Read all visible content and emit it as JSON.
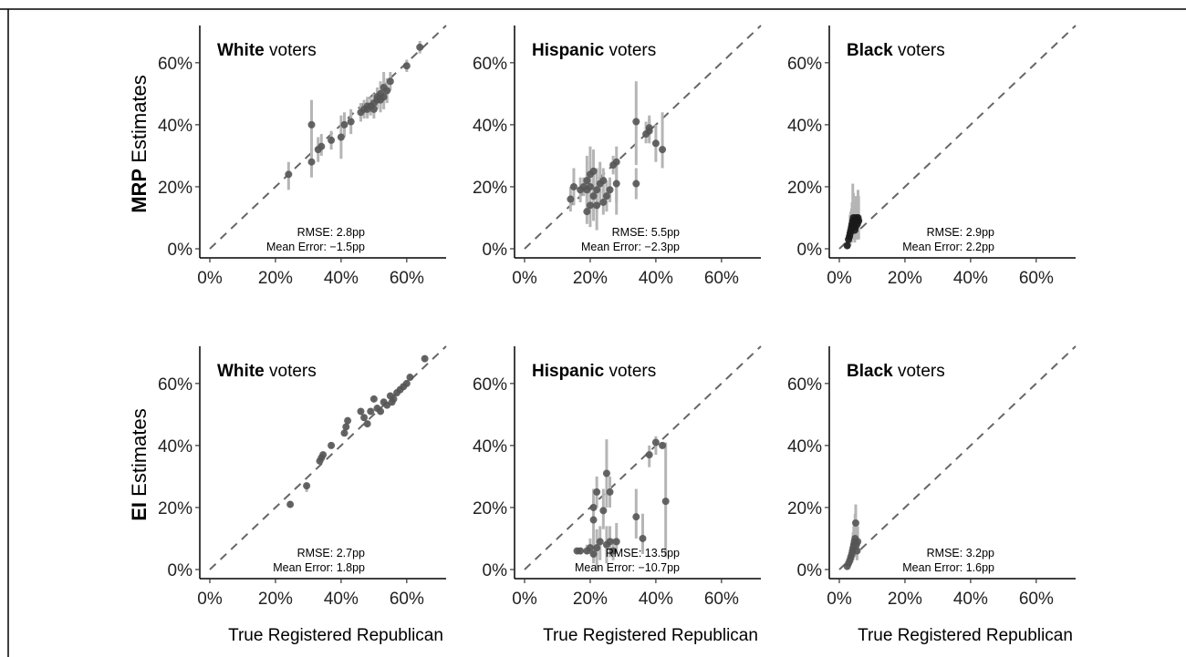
{
  "figure": {
    "row_titles": [
      {
        "bold": "MRP",
        "rest": " Estimates"
      },
      {
        "bold": "EI",
        "rest": " Estimates"
      }
    ],
    "x_title": "True Registered Republican",
    "stat_labels": {
      "rmse": "RMSE: ",
      "mean_error": "Mean Error: "
    }
  },
  "chart_data": [
    {
      "type": "scatter",
      "row": 0,
      "col": 0,
      "method": "MRP",
      "group_bold": "White",
      "group_rest": " voters",
      "xlim": [
        0,
        0.72
      ],
      "ylim": [
        0,
        0.72
      ],
      "xticks": [
        0,
        0.2,
        0.4,
        0.6
      ],
      "yticks": [
        0,
        0.2,
        0.4,
        0.6
      ],
      "tick_labels": [
        "0%",
        "20%",
        "40%",
        "60%"
      ],
      "rmse": "2.8pp",
      "mean_error": "−1.5pp",
      "points": [
        [
          0.24,
          0.24,
          0.19,
          0.28
        ],
        [
          0.31,
          0.4,
          0.33,
          0.48
        ],
        [
          0.31,
          0.28,
          0.23,
          0.33
        ],
        [
          0.33,
          0.32,
          0.28,
          0.36
        ],
        [
          0.34,
          0.33,
          0.3,
          0.37
        ],
        [
          0.37,
          0.35,
          0.32,
          0.38
        ],
        [
          0.4,
          0.36,
          0.29,
          0.43
        ],
        [
          0.41,
          0.4,
          0.36,
          0.44
        ],
        [
          0.43,
          0.41,
          0.37,
          0.45
        ],
        [
          0.46,
          0.44,
          0.41,
          0.47
        ],
        [
          0.47,
          0.45,
          0.42,
          0.48
        ],
        [
          0.48,
          0.46,
          0.43,
          0.49
        ],
        [
          0.48,
          0.45,
          0.42,
          0.48
        ],
        [
          0.49,
          0.46,
          0.43,
          0.49
        ],
        [
          0.5,
          0.45,
          0.42,
          0.48
        ],
        [
          0.5,
          0.47,
          0.44,
          0.5
        ],
        [
          0.51,
          0.48,
          0.45,
          0.51
        ],
        [
          0.51,
          0.49,
          0.46,
          0.52
        ],
        [
          0.52,
          0.48,
          0.44,
          0.52
        ],
        [
          0.52,
          0.5,
          0.46,
          0.54
        ],
        [
          0.53,
          0.52,
          0.47,
          0.57
        ],
        [
          0.53,
          0.49,
          0.45,
          0.53
        ],
        [
          0.54,
          0.51,
          0.47,
          0.55
        ],
        [
          0.55,
          0.54,
          0.51,
          0.57
        ],
        [
          0.6,
          0.59,
          0.57,
          0.61
        ],
        [
          0.64,
          0.65,
          0.63,
          0.67
        ]
      ]
    },
    {
      "type": "scatter",
      "row": 0,
      "col": 1,
      "method": "MRP",
      "group_bold": "Hispanic",
      "group_rest": " voters",
      "xlim": [
        0,
        0.72
      ],
      "ylim": [
        0,
        0.72
      ],
      "xticks": [
        0,
        0.2,
        0.4,
        0.6
      ],
      "yticks": [
        0,
        0.2,
        0.4,
        0.6
      ],
      "tick_labels": [
        "0%",
        "20%",
        "40%",
        "60%"
      ],
      "rmse": "5.5pp",
      "mean_error": "−2.3pp",
      "points": [
        [
          0.14,
          0.16,
          0.12,
          0.2
        ],
        [
          0.15,
          0.2,
          0.14,
          0.26
        ],
        [
          0.17,
          0.19,
          0.15,
          0.23
        ],
        [
          0.18,
          0.2,
          0.17,
          0.23
        ],
        [
          0.19,
          0.12,
          0.08,
          0.16
        ],
        [
          0.19,
          0.19,
          0.14,
          0.24
        ],
        [
          0.19,
          0.22,
          0.14,
          0.3
        ],
        [
          0.2,
          0.24,
          0.17,
          0.33
        ],
        [
          0.2,
          0.14,
          0.07,
          0.2
        ],
        [
          0.2,
          0.2,
          0.12,
          0.28
        ],
        [
          0.21,
          0.25,
          0.18,
          0.32
        ],
        [
          0.21,
          0.17,
          0.09,
          0.25
        ],
        [
          0.22,
          0.14,
          0.06,
          0.22
        ],
        [
          0.22,
          0.19,
          0.12,
          0.26
        ],
        [
          0.23,
          0.21,
          0.14,
          0.28
        ],
        [
          0.24,
          0.15,
          0.11,
          0.19
        ],
        [
          0.24,
          0.22,
          0.18,
          0.26
        ],
        [
          0.25,
          0.17,
          0.12,
          0.22
        ],
        [
          0.26,
          0.19,
          0.15,
          0.23
        ],
        [
          0.27,
          0.27,
          0.24,
          0.3
        ],
        [
          0.28,
          0.21,
          0.15,
          0.27
        ],
        [
          0.28,
          0.28,
          0.11,
          0.33
        ],
        [
          0.34,
          0.21,
          0.16,
          0.26
        ],
        [
          0.34,
          0.41,
          0.27,
          0.54
        ],
        [
          0.37,
          0.37,
          0.34,
          0.41
        ],
        [
          0.38,
          0.39,
          0.35,
          0.43
        ],
        [
          0.38,
          0.38,
          0.34,
          0.42
        ],
        [
          0.4,
          0.34,
          0.28,
          0.4
        ],
        [
          0.42,
          0.32,
          0.26,
          0.44
        ]
      ]
    },
    {
      "type": "scatter",
      "row": 0,
      "col": 2,
      "method": "MRP",
      "group_bold": "Black",
      "group_rest": " voters",
      "xlim": [
        0,
        0.72
      ],
      "ylim": [
        0,
        0.72
      ],
      "xticks": [
        0,
        0.2,
        0.4,
        0.6
      ],
      "yticks": [
        0,
        0.2,
        0.4,
        0.6
      ],
      "tick_labels": [
        "0%",
        "20%",
        "40%",
        "60%"
      ],
      "rmse": "2.9pp",
      "mean_error": "2.2pp",
      "points": [
        [
          0.024,
          0.01,
          0.0,
          0.04
        ],
        [
          0.028,
          0.03,
          0.0,
          0.06
        ],
        [
          0.031,
          0.04,
          0.01,
          0.08
        ],
        [
          0.033,
          0.05,
          0.01,
          0.11
        ],
        [
          0.035,
          0.06,
          0.02,
          0.12
        ],
        [
          0.037,
          0.07,
          0.02,
          0.13
        ],
        [
          0.039,
          0.08,
          0.03,
          0.15
        ],
        [
          0.041,
          0.09,
          0.03,
          0.21
        ],
        [
          0.043,
          0.1,
          0.03,
          0.18
        ],
        [
          0.045,
          0.08,
          0.03,
          0.14
        ],
        [
          0.047,
          0.06,
          0.02,
          0.12
        ],
        [
          0.049,
          0.07,
          0.03,
          0.13
        ],
        [
          0.051,
          0.1,
          0.04,
          0.17
        ],
        [
          0.053,
          0.09,
          0.03,
          0.16
        ],
        [
          0.055,
          0.08,
          0.03,
          0.14
        ],
        [
          0.057,
          0.1,
          0.04,
          0.19
        ],
        [
          0.059,
          0.09,
          0.03,
          0.17
        ]
      ]
    },
    {
      "type": "scatter",
      "row": 1,
      "col": 0,
      "method": "EI",
      "group_bold": "White",
      "group_rest": " voters",
      "xlim": [
        0,
        0.72
      ],
      "ylim": [
        0,
        0.72
      ],
      "xticks": [
        0,
        0.2,
        0.4,
        0.6
      ],
      "yticks": [
        0,
        0.2,
        0.4,
        0.6
      ],
      "tick_labels": [
        "0%",
        "20%",
        "40%",
        "60%"
      ],
      "rmse": "2.7pp",
      "mean_error": "1.8pp",
      "points": [
        [
          0.245,
          0.21,
          0.2,
          0.22
        ],
        [
          0.295,
          0.27,
          0.25,
          0.28
        ],
        [
          0.335,
          0.35,
          0.34,
          0.36
        ],
        [
          0.34,
          0.36,
          0.35,
          0.37
        ],
        [
          0.345,
          0.37,
          0.36,
          0.38
        ],
        [
          0.37,
          0.4,
          0.39,
          0.41
        ],
        [
          0.41,
          0.44,
          0.43,
          0.45
        ],
        [
          0.415,
          0.46,
          0.45,
          0.47
        ],
        [
          0.42,
          0.48,
          0.47,
          0.49
        ],
        [
          0.46,
          0.51,
          0.5,
          0.52
        ],
        [
          0.47,
          0.49,
          0.48,
          0.5
        ],
        [
          0.48,
          0.47,
          0.46,
          0.48
        ],
        [
          0.49,
          0.51,
          0.5,
          0.52
        ],
        [
          0.5,
          0.55,
          0.54,
          0.56
        ],
        [
          0.51,
          0.52,
          0.51,
          0.53
        ],
        [
          0.52,
          0.51,
          0.5,
          0.52
        ],
        [
          0.53,
          0.54,
          0.53,
          0.55
        ],
        [
          0.54,
          0.53,
          0.52,
          0.54
        ],
        [
          0.55,
          0.56,
          0.55,
          0.57
        ],
        [
          0.555,
          0.54,
          0.53,
          0.55
        ],
        [
          0.56,
          0.55,
          0.54,
          0.56
        ],
        [
          0.57,
          0.57,
          0.56,
          0.58
        ],
        [
          0.58,
          0.58,
          0.57,
          0.59
        ],
        [
          0.59,
          0.59,
          0.58,
          0.6
        ],
        [
          0.6,
          0.6,
          0.59,
          0.61
        ],
        [
          0.61,
          0.62,
          0.61,
          0.63
        ],
        [
          0.655,
          0.68,
          0.67,
          0.69
        ]
      ]
    },
    {
      "type": "scatter",
      "row": 1,
      "col": 1,
      "method": "EI",
      "group_bold": "Hispanic",
      "group_rest": " voters",
      "xlim": [
        0,
        0.72
      ],
      "ylim": [
        0,
        0.72
      ],
      "xticks": [
        0,
        0.2,
        0.4,
        0.6
      ],
      "yticks": [
        0,
        0.2,
        0.4,
        0.6
      ],
      "tick_labels": [
        "0%",
        "20%",
        "40%",
        "60%"
      ],
      "rmse": "13.5pp",
      "mean_error": "−10.7pp",
      "points": [
        [
          0.16,
          0.06,
          0.05,
          0.07
        ],
        [
          0.17,
          0.06,
          0.05,
          0.07
        ],
        [
          0.19,
          0.06,
          0.05,
          0.08
        ],
        [
          0.2,
          0.07,
          0.05,
          0.1
        ],
        [
          0.21,
          0.05,
          0.02,
          0.1
        ],
        [
          0.21,
          0.2,
          0.15,
          0.26
        ],
        [
          0.21,
          0.16,
          0.1,
          0.22
        ],
        [
          0.22,
          0.25,
          0.2,
          0.3
        ],
        [
          0.22,
          0.07,
          0.0,
          0.13
        ],
        [
          0.23,
          0.09,
          0.03,
          0.14
        ],
        [
          0.24,
          0.19,
          0.13,
          0.26
        ],
        [
          0.25,
          0.31,
          0.2,
          0.42
        ],
        [
          0.25,
          0.08,
          0.02,
          0.14
        ],
        [
          0.26,
          0.25,
          0.2,
          0.3
        ],
        [
          0.26,
          0.09,
          0.04,
          0.14
        ],
        [
          0.27,
          0.06,
          0.03,
          0.1
        ],
        [
          0.28,
          0.09,
          0.05,
          0.15
        ],
        [
          0.34,
          0.17,
          0.1,
          0.26
        ],
        [
          0.36,
          0.1,
          0.05,
          0.18
        ],
        [
          0.38,
          0.37,
          0.33,
          0.4
        ],
        [
          0.4,
          0.41,
          0.37,
          0.43
        ],
        [
          0.42,
          0.4,
          0.39,
          0.41
        ],
        [
          0.43,
          0.22,
          0.04,
          0.41
        ]
      ]
    },
    {
      "type": "scatter",
      "row": 1,
      "col": 2,
      "method": "EI",
      "group_bold": "Black",
      "group_rest": " voters",
      "xlim": [
        0,
        0.72
      ],
      "ylim": [
        0,
        0.72
      ],
      "xticks": [
        0,
        0.2,
        0.4,
        0.6
      ],
      "yticks": [
        0,
        0.2,
        0.4,
        0.6
      ],
      "tick_labels": [
        "0%",
        "20%",
        "40%",
        "60%"
      ],
      "rmse": "3.2pp",
      "mean_error": "1.6pp",
      "points": [
        [
          0.024,
          0.01,
          0.0,
          0.02
        ],
        [
          0.028,
          0.02,
          0.01,
          0.03
        ],
        [
          0.032,
          0.03,
          0.01,
          0.05
        ],
        [
          0.035,
          0.04,
          0.02,
          0.07
        ],
        [
          0.038,
          0.05,
          0.02,
          0.08
        ],
        [
          0.04,
          0.06,
          0.03,
          0.1
        ],
        [
          0.042,
          0.07,
          0.03,
          0.12
        ],
        [
          0.044,
          0.08,
          0.04,
          0.14
        ],
        [
          0.046,
          0.09,
          0.04,
          0.16
        ],
        [
          0.048,
          0.1,
          0.05,
          0.18
        ],
        [
          0.05,
          0.15,
          0.09,
          0.21
        ],
        [
          0.052,
          0.08,
          0.04,
          0.13
        ],
        [
          0.054,
          0.06,
          0.03,
          0.1
        ],
        [
          0.056,
          0.09,
          0.05,
          0.14
        ]
      ]
    }
  ]
}
